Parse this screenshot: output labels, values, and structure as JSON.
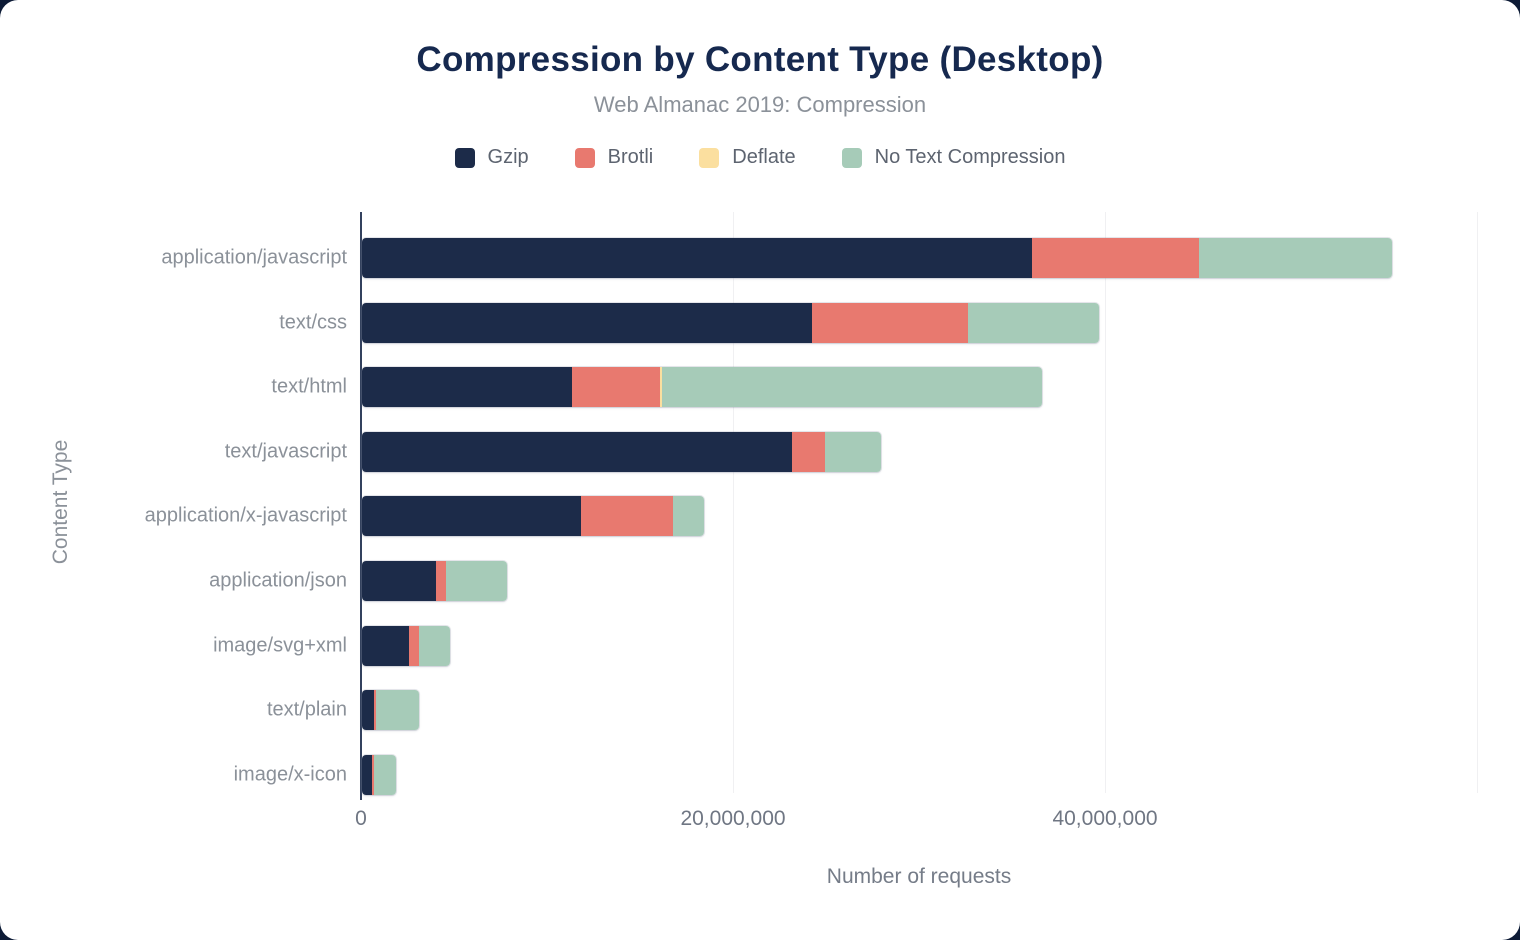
{
  "page": {
    "title": "Compression by Content Type (Desktop)",
    "subtitle": "Web Almanac 2019: Compression"
  },
  "colors": {
    "gzip": "#1c2b49",
    "brotli": "#e8796f",
    "deflate": "#fbdf9f",
    "no_text_compression": "#a6cbb8",
    "axis_line": "#33415e",
    "gridline": "#f0f0f2",
    "title_text": "#16294f",
    "muted_text": "#8b9199",
    "page_background": "#0d1b36"
  },
  "legend": {
    "items": [
      {
        "label": "Gzip",
        "color": "#1c2b49"
      },
      {
        "label": "Brotli",
        "color": "#e8796f"
      },
      {
        "label": "Deflate",
        "color": "#fbdf9f"
      },
      {
        "label": "No Text Compression",
        "color": "#a6cbb8"
      }
    ]
  },
  "chart_data": {
    "type": "bar",
    "orientation": "horizontal",
    "stacked": true,
    "title": "Compression by Content Type (Desktop)",
    "subtitle": "Web Almanac 2019: Compression",
    "xlabel": "Number of requests",
    "ylabel": "Content Type",
    "xlim": [
      0,
      60000000
    ],
    "grid": true,
    "legend_position": "top",
    "categories": [
      "application/javascript",
      "text/css",
      "text/html",
      "text/javascript",
      "application/x-javascript",
      "application/json",
      "image/svg+xml",
      "text/plain",
      "image/x-icon"
    ],
    "series": [
      {
        "name": "Gzip",
        "color": "#1c2b49",
        "values": [
          36000000,
          24200000,
          11300000,
          23100000,
          11800000,
          4000000,
          2500000,
          620000,
          520000
        ]
      },
      {
        "name": "Brotli",
        "color": "#e8796f",
        "values": [
          9000000,
          8400000,
          4700000,
          1800000,
          4900000,
          500000,
          550000,
          130000,
          140000
        ]
      },
      {
        "name": "Deflate",
        "color": "#fbdf9f",
        "values": [
          0,
          0,
          150000,
          0,
          0,
          0,
          0,
          0,
          0
        ]
      },
      {
        "name": "No Text Compression",
        "color": "#a6cbb8",
        "values": [
          10400000,
          7000000,
          20400000,
          3000000,
          1700000,
          3300000,
          1700000,
          2300000,
          1150000
        ]
      }
    ],
    "x_ticks": [
      {
        "label": "0",
        "value": 0
      },
      {
        "label": "20,000,000",
        "value": 20000000
      },
      {
        "label": "40,000,000",
        "value": 40000000
      }
    ],
    "gridline_values": [
      20000000,
      40000000,
      60000000
    ]
  }
}
